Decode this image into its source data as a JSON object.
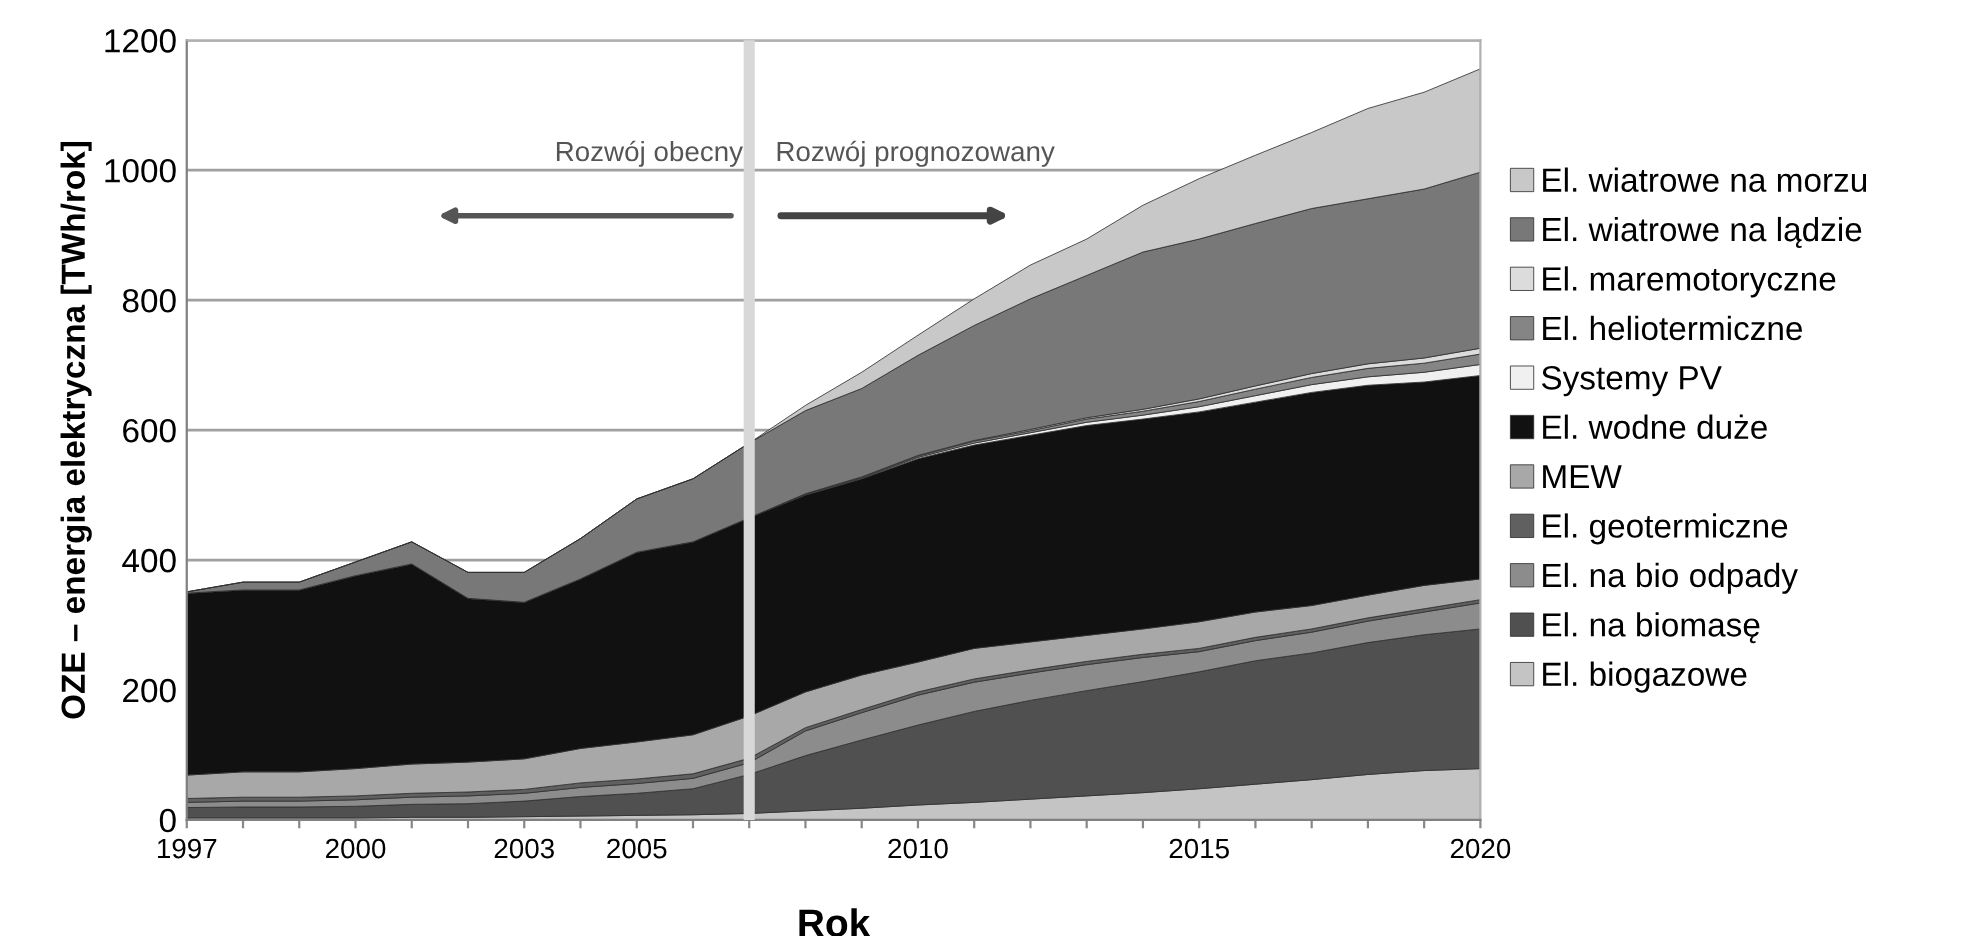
{
  "chart_data": {
    "type": "area",
    "stacked": true,
    "xlabel": "Rok",
    "ylabel": "OZE – energia elektryczna [TWh/rok]",
    "x": [
      1997,
      1998,
      1999,
      2000,
      2001,
      2002,
      2003,
      2004,
      2005,
      2006,
      2007,
      2008,
      2009,
      2010,
      2011,
      2012,
      2013,
      2014,
      2015,
      2016,
      2017,
      2018,
      2019,
      2020
    ],
    "series": [
      {
        "name": "El. biogazowe",
        "color": "#c4c4c4",
        "values": [
          3,
          3,
          3,
          3,
          4,
          4,
          5,
          6,
          7,
          8,
          10,
          14,
          18,
          23,
          27,
          32,
          37,
          42,
          48,
          55,
          62,
          70,
          76,
          79
        ]
      },
      {
        "name": "El. na biomasę",
        "color": "#505050",
        "values": [
          16,
          17,
          17,
          18,
          20,
          21,
          24,
          30,
          34,
          40,
          60,
          85,
          105,
          123,
          140,
          152,
          162,
          171,
          180,
          190,
          195,
          203,
          209,
          215
        ]
      },
      {
        "name": "El. na bio odpady",
        "color": "#8c8c8c",
        "values": [
          8,
          9,
          9,
          10,
          11,
          12,
          12,
          14,
          15,
          16,
          18,
          38,
          42,
          46,
          45,
          42,
          40,
          37,
          31,
          31,
          32,
          33,
          35,
          40
        ]
      },
      {
        "name": "El. geotermiczne",
        "color": "#606060",
        "values": [
          6,
          6,
          6,
          6,
          6,
          6,
          6,
          7,
          7,
          7,
          7,
          5,
          5,
          5,
          5,
          5,
          5,
          5,
          5,
          5,
          5,
          5,
          5,
          5
        ]
      },
      {
        "name": "MEW",
        "color": "#a8a8a8",
        "values": [
          36,
          39,
          39,
          42,
          45,
          46,
          47,
          53,
          57,
          60,
          65,
          55,
          53,
          46,
          47,
          43,
          40,
          39,
          41,
          39,
          36,
          35,
          36,
          32
        ]
      },
      {
        "name": "El. wodne duże",
        "color": "#111111",
        "values": [
          280,
          280,
          280,
          297,
          308,
          252,
          241,
          261,
          292,
          297,
          305,
          303,
          302,
          313,
          313,
          318,
          323,
          323,
          323,
          323,
          328,
          323,
          313,
          313
        ]
      },
      {
        "name": "Systemy PV",
        "color": "#f0f0f0",
        "values": [
          0,
          0,
          0,
          0,
          0,
          0,
          0,
          0,
          0,
          0,
          0,
          1,
          1,
          2,
          3,
          4,
          5,
          6,
          8,
          10,
          12,
          13,
          15,
          17
        ]
      },
      {
        "name": "El. heliotermiczne",
        "color": "#858585",
        "values": [
          0,
          0,
          0,
          0,
          0,
          0,
          0,
          0,
          0,
          0,
          0,
          1,
          1,
          2,
          3,
          3,
          5,
          6,
          8,
          10,
          11,
          13,
          14,
          16
        ]
      },
      {
        "name": "El. maremotoryczne",
        "color": "#dcdcdc",
        "values": [
          0,
          0,
          0,
          0,
          0,
          0,
          0,
          0,
          0,
          0,
          0,
          0,
          1,
          1,
          1,
          2,
          2,
          3,
          4,
          5,
          6,
          7,
          8,
          9
        ]
      },
      {
        "name": "El. wiatrowe na lądzie",
        "color": "#787878",
        "values": [
          2,
          12,
          12,
          21,
          34,
          40,
          46,
          62,
          82,
          97,
          115,
          128,
          136,
          154,
          177,
          201,
          219,
          242,
          246,
          250,
          254,
          254,
          260,
          271
        ]
      },
      {
        "name": "El. wiatrowe na morzu",
        "color": "#c8c8c8",
        "values": [
          0,
          0,
          0,
          0,
          0,
          0,
          0,
          0,
          0,
          0,
          0,
          8,
          25,
          31,
          41,
          52,
          56,
          72,
          93,
          105,
          117,
          139,
          149,
          159
        ]
      }
    ],
    "xlim": [
      1997,
      2020
    ],
    "xticks": [
      1997,
      {
        "value": 1998,
        "label": null
      },
      {
        "value": 1999,
        "label": null
      },
      2000,
      {
        "value": 2001,
        "label": null
      },
      {
        "value": 2002,
        "label": null
      },
      2003,
      {
        "value": 2004,
        "label": null
      },
      2005,
      {
        "value": 2006,
        "label": null
      },
      {
        "value": 2007,
        "label": null
      },
      {
        "value": 2008,
        "label": null
      },
      {
        "value": 2009,
        "label": null
      },
      2010,
      {
        "value": 2011,
        "label": null
      },
      {
        "value": 2012,
        "label": null
      },
      {
        "value": 2013,
        "label": null
      },
      {
        "value": 2014,
        "label": null
      },
      2015,
      {
        "value": 2016,
        "label": null
      },
      {
        "value": 2017,
        "label": null
      },
      {
        "value": 2018,
        "label": null
      },
      {
        "value": 2019,
        "label": null
      },
      2020
    ],
    "ylim": [
      0,
      1200
    ],
    "yticks": [
      0,
      200,
      400,
      600,
      800,
      1000,
      1200
    ],
    "grid": "y",
    "legend": "right",
    "ref_lines": [
      {
        "axis": "x",
        "value": 2007,
        "color": "#d8d8d8"
      }
    ],
    "annotations": [
      "Rozwój obecny",
      "Rozwój prognozowany"
    ]
  }
}
